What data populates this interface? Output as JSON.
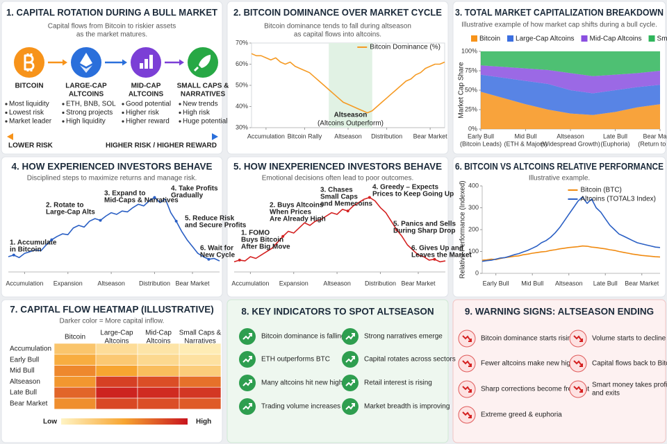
{
  "rotation": {
    "title": "1. CAPITAL ROTATION DURING A BULL MARKET",
    "subtitle": [
      "Capital flows from Bitcoin to riskier assets",
      "as the market matures."
    ],
    "stages": [
      {
        "label": [
          "BITCOIN"
        ],
        "color": "#f7931a",
        "points": [
          "Most liquidity",
          "Lowest risk",
          "Market leader"
        ]
      },
      {
        "label": [
          "LARGE-CAP",
          "ALTCOINS"
        ],
        "color": "#2a6fdb",
        "points": [
          "ETH, BNB, SOL",
          "Strong projects",
          "High liquidity"
        ]
      },
      {
        "label": [
          "MID-CAP",
          "ALTCOINS"
        ],
        "color": "#7b3fd6",
        "points": [
          "Good potential",
          "Higher risk",
          "Higher reward"
        ]
      },
      {
        "label": [
          "SMALL CAPS &",
          "NARRATIVES"
        ],
        "color": "#27a845",
        "points": [
          "New trends",
          "High risk",
          "Huge potential"
        ]
      }
    ],
    "scale_low": "LOWER RISK",
    "scale_high": "HIGHER RISK / HIGHER REWARD"
  },
  "chart_data": [
    {
      "type": "line",
      "title": "2. BITCOIN DOMINANCE OVER MARKET CYCLE",
      "subtitle": [
        "Bitcoin dominance tends to fall during altseason",
        "as capital flows into altcoins."
      ],
      "x": [
        0,
        1,
        2,
        3,
        4,
        5,
        6,
        7,
        8,
        9,
        10,
        11,
        12,
        13,
        14,
        15,
        16,
        17,
        18,
        19,
        20,
        21,
        22,
        23,
        24,
        25,
        26,
        27,
        28,
        29,
        30,
        31,
        32,
        33,
        34,
        35,
        36,
        37,
        38,
        39,
        40
      ],
      "series": [
        {
          "name": "Bitcoin Dominance (%)",
          "color": "#f59a23",
          "values": [
            65,
            64,
            64,
            63,
            62,
            63,
            61,
            60,
            61,
            59,
            58,
            57,
            56,
            54,
            52,
            50,
            48,
            46,
            44,
            42,
            41,
            40,
            39,
            38,
            37,
            38,
            40,
            42,
            44,
            46,
            48,
            50,
            52,
            53,
            55,
            56,
            58,
            59,
            60,
            60,
            61
          ]
        }
      ],
      "xlim": [
        0,
        40
      ],
      "xticks": [
        {
          "value": 3,
          "label": "Accumulation"
        },
        {
          "value": 11,
          "label": "Bitcoin Rally"
        },
        {
          "value": 20,
          "label": "Altseason"
        },
        {
          "value": 28,
          "label": "Distribution"
        },
        {
          "value": 37,
          "label": "Bear Market"
        }
      ],
      "ylim": [
        30,
        70
      ],
      "yticks": [
        {
          "value": 30,
          "label": "30%"
        },
        {
          "value": 40,
          "label": "40%"
        },
        {
          "value": 50,
          "label": "50%"
        },
        {
          "value": 60,
          "label": "60%"
        },
        {
          "value": 70,
          "label": "70%"
        }
      ],
      "highlight": {
        "label": "Altseason",
        "sublabel": "(Altcoins Outperform)",
        "x": [
          16,
          25
        ],
        "color": "#e1f2e4"
      },
      "legend": "upper right"
    },
    {
      "type": "area",
      "title": "3. TOTAL MARKET CAPITALIZATION BREAKDOWN",
      "subtitle": [
        "Illustrative example of how market cap shifts during a bull cycle."
      ],
      "ylabel": "Market Cap Share",
      "x": [
        0,
        1,
        2,
        3,
        4,
        5,
        6,
        7,
        8
      ],
      "series": [
        {
          "name": "Bitcoin",
          "color": "#f7931a",
          "values": [
            48,
            40,
            32,
            25,
            20,
            18,
            22,
            28,
            32
          ]
        },
        {
          "name": "Large-Cap Altcoins",
          "color": "#3b6fe0",
          "values": [
            22,
            26,
            30,
            33,
            30,
            28,
            28,
            26,
            25
          ]
        },
        {
          "name": "Mid-Cap Altcoins",
          "color": "#8a4fe0",
          "values": [
            12,
            14,
            16,
            18,
            22,
            22,
            20,
            18,
            18
          ]
        },
        {
          "name": "Small Caps & Others",
          "color": "#2fb55b",
          "values": [
            18,
            20,
            22,
            24,
            28,
            32,
            30,
            28,
            25
          ]
        }
      ],
      "xlim": [
        0,
        8
      ],
      "xticks": [
        {
          "value": 0,
          "label": "Early Bull"
        },
        {
          "value": 2,
          "label": "Mid Bull"
        },
        {
          "value": 4,
          "label": "Altseason"
        },
        {
          "value": 6,
          "label": "Late Bull"
        },
        {
          "value": 8,
          "label": "Bear Market"
        }
      ],
      "xtick_notes": [
        "(Bitcoin Leads)",
        "(ETH & Majors)",
        "(Widespread Growth)",
        "(Euphoria)",
        "(Return to BTC)"
      ],
      "ylim": [
        0,
        100
      ],
      "yticks": [
        {
          "value": 0,
          "label": "0%"
        },
        {
          "value": 25,
          "label": "25%"
        },
        {
          "value": 50,
          "label": "50%"
        },
        {
          "value": 75,
          "label": "75%"
        },
        {
          "value": 100,
          "label": "100%"
        }
      ],
      "legend": "top"
    },
    {
      "type": "line",
      "title": "4. HOW EXPERIENCED INVESTORS BEHAVE",
      "subtitle": [
        "Disciplined steps to maximize returns and manage risk."
      ],
      "x": [
        0,
        1,
        2,
        3,
        4,
        5,
        6,
        7,
        8,
        9,
        10,
        11,
        12,
        13,
        14,
        15,
        16,
        17,
        18,
        19,
        20,
        21,
        22,
        23,
        24,
        25,
        26,
        27,
        28,
        29,
        30,
        31,
        32,
        33,
        34,
        35,
        36,
        37,
        38,
        39
      ],
      "series": [
        {
          "color": "#2a5fc4",
          "values": [
            18,
            20,
            17,
            22,
            24,
            26,
            25,
            32,
            38,
            42,
            45,
            44,
            52,
            55,
            53,
            60,
            63,
            61,
            66,
            70,
            68,
            72,
            71,
            76,
            80,
            78,
            84,
            88,
            82,
            86,
            70,
            60,
            48,
            38,
            30,
            22,
            18,
            15,
            16,
            13
          ]
        }
      ],
      "xlim": [
        0,
        39
      ],
      "xticks": [
        {
          "value": 3,
          "label": "Accumulation"
        },
        {
          "value": 11,
          "label": "Expansion"
        },
        {
          "value": 19,
          "label": "Altseason"
        },
        {
          "value": 27,
          "label": "Distribution"
        },
        {
          "value": 34,
          "label": "Bear Market"
        }
      ],
      "ylim": [
        0,
        100
      ],
      "annotations": [
        {
          "text": [
            "1. Accumulate",
            "in Bitcoin"
          ],
          "x": 1
        },
        {
          "text": [
            "2. Rotate to",
            "Large-Cap Alts"
          ],
          "x": 8
        },
        {
          "text": [
            "3. Expand to",
            "Mid-Caps & Narratives"
          ],
          "x": 17
        },
        {
          "text": [
            "4. Take Profits",
            "Gradually"
          ],
          "x": 27
        },
        {
          "text": [
            "5. Reduce Risk",
            "and Secure Profits"
          ],
          "x": 31
        },
        {
          "text": [
            "6. Wait for",
            "New Cycle"
          ],
          "x": 37
        }
      ]
    },
    {
      "type": "line",
      "title": "5. HOW INEXPERIENCED INVESTORS BEHAVE",
      "subtitle": [
        "Emotional decisions often lead to poor outcomes."
      ],
      "x": [
        0,
        1,
        2,
        3,
        4,
        5,
        6,
        7,
        8,
        9,
        10,
        11,
        12,
        13,
        14,
        15,
        16,
        17,
        18,
        19,
        20,
        21,
        22,
        23,
        24,
        25,
        26,
        27,
        28,
        29,
        30,
        31,
        32,
        33,
        34,
        35,
        36,
        37,
        38,
        39
      ],
      "series": [
        {
          "color": "#d42020",
          "values": [
            12,
            14,
            13,
            18,
            16,
            20,
            24,
            28,
            35,
            42,
            48,
            46,
            52,
            58,
            55,
            60,
            62,
            66,
            70,
            68,
            74,
            72,
            78,
            82,
            86,
            88,
            84,
            76,
            70,
            60,
            50,
            42,
            32,
            26,
            20,
            18,
            14,
            15,
            12,
            13
          ]
        }
      ],
      "xlim": [
        0,
        39
      ],
      "xticks": [
        {
          "value": 3,
          "label": "Accumulation"
        },
        {
          "value": 11,
          "label": "Expansion"
        },
        {
          "value": 19,
          "label": "Altseason"
        },
        {
          "value": 27,
          "label": "Distribution"
        },
        {
          "value": 34,
          "label": "Bear Market"
        }
      ],
      "ylim": [
        0,
        100
      ],
      "annotations": [
        {
          "text": [
            "1. FOMO",
            "Buys Bitcoin",
            "After Big Move"
          ],
          "x": 1
        },
        {
          "text": [
            "2. Buys Altcoins",
            "When Prices",
            "Are Already High"
          ],
          "x": 9
        },
        {
          "text": [
            "3. Chases",
            "Small Caps",
            "and Memecoins"
          ],
          "x": 21
        },
        {
          "text": [
            "4. Greedy – Expects",
            "Prices to Keep Going Up"
          ],
          "x": 25
        },
        {
          "text": [
            "5. Panics and Sells",
            "During Sharp Drop"
          ],
          "x": 30
        },
        {
          "text": [
            "6. Gives Up and",
            "Leaves the Market"
          ],
          "x": 37
        }
      ]
    },
    {
      "type": "line",
      "title": "6. BITCOIN VS ALTCOINS RELATIVE PERFORMANCE",
      "subtitle": [
        "Illustrative example."
      ],
      "ylabel": "Relative Performance (Indexed)",
      "x": [
        0,
        1,
        2,
        3,
        4,
        5,
        6,
        7,
        8,
        9,
        10,
        11,
        12,
        13,
        14,
        15,
        16,
        17,
        18,
        19,
        20,
        21,
        22,
        23,
        24,
        25,
        26,
        27,
        28,
        29,
        30,
        31,
        32,
        33,
        34,
        35,
        36,
        37,
        38,
        39
      ],
      "series": [
        {
          "name": "Bitcoin (BTC)",
          "color": "#f08a10",
          "values": [
            60,
            62,
            65,
            63,
            68,
            72,
            75,
            78,
            80,
            85,
            88,
            92,
            95,
            98,
            100,
            105,
            108,
            112,
            115,
            118,
            120,
            122,
            125,
            124,
            120,
            118,
            115,
            112,
            108,
            105,
            100,
            96,
            92,
            88,
            85,
            82,
            80,
            78,
            76,
            75
          ]
        },
        {
          "name": "Altcoins (TOTAL3 Index)",
          "color": "#2a5fc4",
          "values": [
            55,
            58,
            60,
            65,
            70,
            72,
            78,
            85,
            90,
            98,
            105,
            115,
            125,
            140,
            150,
            165,
            185,
            210,
            240,
            270,
            300,
            330,
            350,
            320,
            340,
            300,
            280,
            250,
            220,
            200,
            180,
            170,
            160,
            150,
            140,
            135,
            130,
            125,
            120,
            118
          ]
        }
      ],
      "xlim": [
        0,
        39
      ],
      "xticks": [
        {
          "value": 3,
          "label": "Early Bull"
        },
        {
          "value": 11,
          "label": "Mid Bull"
        },
        {
          "value": 19,
          "label": "Altseason"
        },
        {
          "value": 27,
          "label": "Late Bull"
        },
        {
          "value": 35,
          "label": "Bear Market"
        }
      ],
      "ylim": [
        0,
        400
      ],
      "yticks": [
        0,
        100,
        200,
        300,
        400
      ],
      "legend": "upper right"
    },
    {
      "type": "heatmap",
      "title": "7. CAPITAL FLOW HEATMAP (ILLUSTRATIVE)",
      "subtitle": [
        "Darker color = More capital inflow."
      ],
      "columns": [
        [
          "Bitcoin"
        ],
        [
          "Large-Cap",
          "Altcoins"
        ],
        [
          "Mid-Cap",
          "Altcoins"
        ],
        [
          "Small Caps &",
          "Narratives"
        ]
      ],
      "rows": [
        "Accumulation",
        "Early Bull",
        "Mid Bull",
        "Altseason",
        "Late Bull",
        "Bear Market"
      ],
      "values": [
        [
          30,
          15,
          10,
          5
        ],
        [
          45,
          28,
          18,
          12
        ],
        [
          60,
          50,
          35,
          25
        ],
        [
          55,
          85,
          80,
          68
        ],
        [
          72,
          95,
          92,
          88
        ],
        [
          58,
          82,
          80,
          76
        ]
      ],
      "clim": [
        0,
        100
      ],
      "colorscale": [
        "#fff4c4",
        "#f7a531",
        "#c8141e"
      ],
      "legend_low": "Low",
      "legend_high": "High"
    }
  ],
  "indicators": {
    "title": "8. KEY INDICATORS TO SPOT ALTSEASON",
    "items": [
      [
        "Bitcoin dominance is falling"
      ],
      [
        "ETH outperforms BTC"
      ],
      [
        "Many altcoins hit new highs"
      ],
      [
        "Trading volume increases"
      ],
      [
        "Strong narratives emerge"
      ],
      [
        "Capital rotates across sectors"
      ],
      [
        "Retail interest is rising"
      ],
      [
        "Market breadth is improving"
      ]
    ]
  },
  "warnings": {
    "title": "9. WARNING SIGNS: ALTSEASON ENDING",
    "items": [
      [
        "Bitcoin dominance starts rising"
      ],
      [
        "Fewer altcoins make new highs"
      ],
      [
        "Sharp corrections become frequent"
      ],
      [
        "Extreme greed & euphoria"
      ],
      [
        "Volume starts to decline"
      ],
      [
        "Capital flows back to Bitcoin"
      ],
      [
        "Smart money takes profits",
        "and exits"
      ]
    ]
  }
}
